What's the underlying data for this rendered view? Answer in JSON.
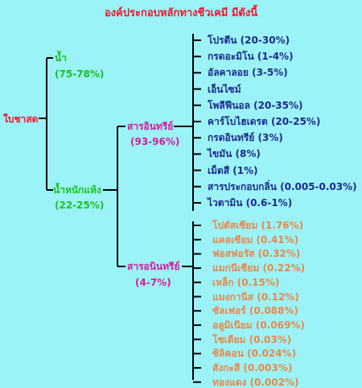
{
  "title": "องค์ประกอบหลักทางชีวเคมี มีดังนี้",
  "root": {
    "label": "ใบชาสด"
  },
  "water": {
    "label": "น้ำ",
    "value": "(75-78%)"
  },
  "dry": {
    "label": "น้ำหนักแห้ง",
    "value": "(22-25%)"
  },
  "organic": {
    "label": "สารอินทรีย์",
    "value": "(93-96%)",
    "items": [
      "โปรตีน (20-30%)",
      "กรดอะมิโน (1-4%)",
      "อัลคาลอย (3-5%)",
      "เอ็นไซม์",
      "โพลีฟีนอล (20-35%)",
      "คาร์โบไฮเดรต (20-25%)",
      "กรดอินทรีย์ (3%)",
      "ไขมัน (8%)",
      "เม็ดสี (1%)",
      "สารประกอบกลิ่น (0.005-0.03%)",
      "ไวตามิน (0.6-1%)"
    ]
  },
  "inorganic": {
    "label": "สารอนินทรีย์",
    "value": "(4-7%)",
    "items": [
      "โปตัสเซียม (1.76%)",
      "แคลเซียม (0.41%)",
      "ฟอสฟอรัส (0.32%)",
      "แมกนีเซียม (0.22%)",
      "เหล็ก (0.15%)",
      "แมงกานีส (0.12%)",
      "ซัลเฟอร์ (0.088%)",
      "อลูมิเนียม (0.069%)",
      "โซเดียม (0.03%)",
      "ซิลิคอน (0.024%)",
      "สังกะสี (0.003%)",
      "ทองแดง (0.002%)"
    ]
  }
}
